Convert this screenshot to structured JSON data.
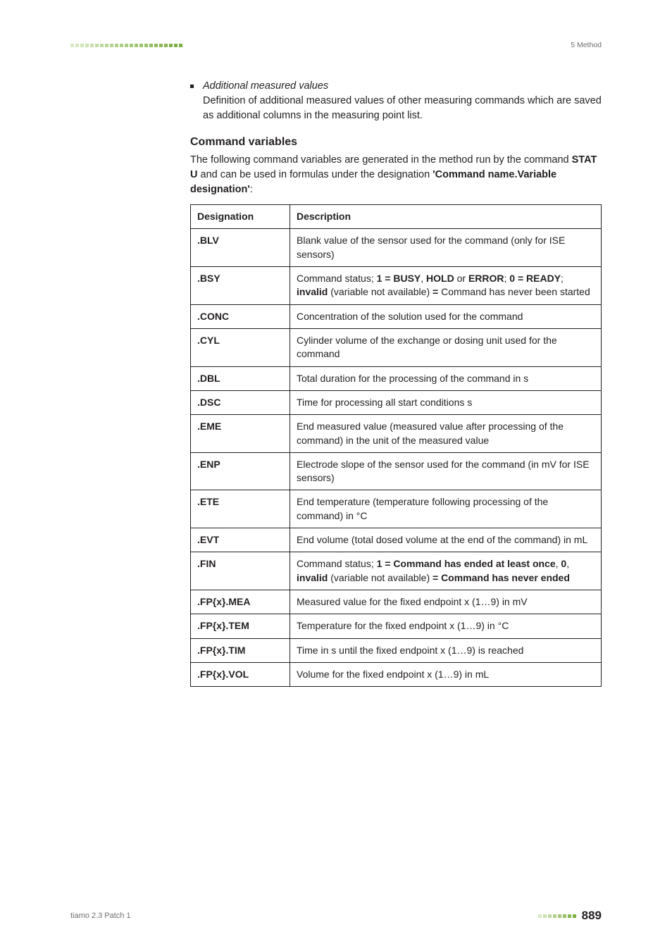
{
  "header": {
    "section_label": "5 Method",
    "square_count": 23,
    "square_gradient_start": "#d7e9c3",
    "square_gradient_end": "#7aae3f"
  },
  "bullet": {
    "lead_italic": "Additional measured values",
    "body": "Definition of additional measured values of other measuring commands which are saved as additional columns in the measuring point list."
  },
  "cv_heading": "Command variables",
  "cv_intro_parts": {
    "p1": "The following command variables are generated in the method run by the command ",
    "bold1": "STAT U",
    "p2": " and can be used in formulas under the designation ",
    "bold2": "'Command name.Variable designation'",
    "p3": ":"
  },
  "table": {
    "col1": "Designation",
    "col2": "Description",
    "rows": [
      {
        "des": ".BLV",
        "desc_parts": [
          {
            "t": "Blank value of the sensor used for the command (only for ISE sensors)"
          }
        ]
      },
      {
        "des": ".BSY",
        "desc_parts": [
          {
            "t": "Command status; "
          },
          {
            "t": "1 = BUSY",
            "b": true
          },
          {
            "t": ", "
          },
          {
            "t": "HOLD",
            "b": true
          },
          {
            "t": " or "
          },
          {
            "t": "ERROR",
            "b": true
          },
          {
            "t": "; "
          },
          {
            "t": "0 = READY",
            "b": true
          },
          {
            "t": "; "
          },
          {
            "t": "invalid",
            "b": true
          },
          {
            "t": " (variable not available) "
          },
          {
            "t": "=",
            "b": true
          },
          {
            "t": " Command has never been started"
          }
        ]
      },
      {
        "des": ".CONC",
        "desc_parts": [
          {
            "t": "Concentration of the solution used for the command"
          }
        ]
      },
      {
        "des": ".CYL",
        "desc_parts": [
          {
            "t": "Cylinder volume of the exchange or dosing unit used for the command"
          }
        ]
      },
      {
        "des": ".DBL",
        "desc_parts": [
          {
            "t": "Total duration for the processing of the command in s"
          }
        ]
      },
      {
        "des": ".DSC",
        "desc_parts": [
          {
            "t": "Time for processing all start conditions s"
          }
        ]
      },
      {
        "des": ".EME",
        "desc_parts": [
          {
            "t": "End measured value (measured value after processing of the command) in the unit of the measured value"
          }
        ]
      },
      {
        "des": ".ENP",
        "desc_parts": [
          {
            "t": "Electrode slope of the sensor used for the command (in mV for ISE sensors)"
          }
        ]
      },
      {
        "des": ".ETE",
        "desc_parts": [
          {
            "t": "End temperature (temperature following processing of the command) in °C"
          }
        ]
      },
      {
        "des": ".EVT",
        "desc_parts": [
          {
            "t": "End volume (total dosed volume at the end of the command) in mL"
          }
        ]
      },
      {
        "des": ".FIN",
        "desc_parts": [
          {
            "t": "Command status; "
          },
          {
            "t": "1 = Command has ended at least once",
            "b": true
          },
          {
            "t": ", "
          },
          {
            "t": "0",
            "b": true
          },
          {
            "t": ", "
          },
          {
            "t": "invalid",
            "b": true
          },
          {
            "t": " (variable not available) "
          },
          {
            "t": "= Command has never ended",
            "b": true
          }
        ]
      },
      {
        "des": ".FP{x}.MEA",
        "desc_parts": [
          {
            "t": "Measured value for the fixed endpoint x (1…9) in mV"
          }
        ]
      },
      {
        "des": ".FP{x}.TEM",
        "desc_parts": [
          {
            "t": "Temperature for the fixed endpoint x (1…9) in °C"
          }
        ]
      },
      {
        "des": ".FP{x}.TIM",
        "desc_parts": [
          {
            "t": "Time in s until the fixed endpoint x (1…9) is reached"
          }
        ]
      },
      {
        "des": ".FP{x}.VOL",
        "desc_parts": [
          {
            "t": "Volume for the fixed endpoint x (1…9) in mL"
          }
        ]
      }
    ]
  },
  "footer": {
    "left": "tiamo 2.3 Patch 1",
    "page": "889",
    "square_count": 8,
    "square_gradient_start": "#d7e9c3",
    "square_gradient_end": "#7aae3f"
  }
}
